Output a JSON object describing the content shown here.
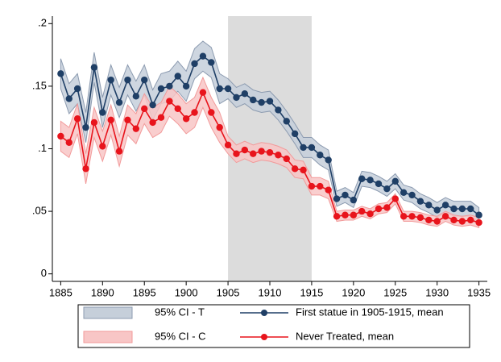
{
  "chart_data": {
    "type": "line",
    "x": [
      1885,
      1886,
      1887,
      1888,
      1889,
      1890,
      1891,
      1892,
      1893,
      1894,
      1895,
      1896,
      1897,
      1898,
      1899,
      1900,
      1901,
      1902,
      1903,
      1904,
      1905,
      1906,
      1907,
      1908,
      1909,
      1910,
      1911,
      1912,
      1913,
      1914,
      1915,
      1916,
      1917,
      1918,
      1919,
      1920,
      1921,
      1922,
      1923,
      1924,
      1925,
      1926,
      1927,
      1928,
      1929,
      1930,
      1931,
      1932,
      1933,
      1934,
      1935
    ],
    "series": [
      {
        "name": "First statue in 1905-1915, mean",
        "color": "#1f3f66",
        "values": [
          0.16,
          0.14,
          0.148,
          0.117,
          0.165,
          0.129,
          0.155,
          0.137,
          0.155,
          0.142,
          0.155,
          0.135,
          0.148,
          0.15,
          0.158,
          0.15,
          0.168,
          0.174,
          0.169,
          0.148,
          0.148,
          0.141,
          0.144,
          0.139,
          0.137,
          0.138,
          0.131,
          0.122,
          0.112,
          0.101,
          0.101,
          0.095,
          0.091,
          0.06,
          0.063,
          0.059,
          0.076,
          0.075,
          0.072,
          0.068,
          0.074,
          0.065,
          0.063,
          0.058,
          0.055,
          0.051,
          0.055,
          0.052,
          0.052,
          0.052,
          0.047
        ]
      },
      {
        "name": "Never Treated, mean",
        "color": "#e8141c",
        "values": [
          0.11,
          0.105,
          0.124,
          0.084,
          0.121,
          0.102,
          0.123,
          0.098,
          0.123,
          0.116,
          0.132,
          0.121,
          0.125,
          0.138,
          0.132,
          0.124,
          0.129,
          0.145,
          0.129,
          0.117,
          0.103,
          0.096,
          0.099,
          0.096,
          0.098,
          0.097,
          0.095,
          0.092,
          0.084,
          0.083,
          0.07,
          0.07,
          0.067,
          0.046,
          0.047,
          0.047,
          0.05,
          0.048,
          0.052,
          0.053,
          0.06,
          0.046,
          0.046,
          0.045,
          0.043,
          0.042,
          0.046,
          0.043,
          0.042,
          0.043,
          0.041
        ]
      }
    ],
    "bands": [
      {
        "name": "95% CI - T",
        "color": "#c6cfda",
        "edge_color": "#8c9bb0",
        "lower": [
          0.148,
          0.128,
          0.136,
          0.105,
          0.153,
          0.117,
          0.143,
          0.125,
          0.143,
          0.13,
          0.143,
          0.123,
          0.136,
          0.138,
          0.146,
          0.138,
          0.156,
          0.162,
          0.157,
          0.136,
          0.14,
          0.133,
          0.136,
          0.131,
          0.129,
          0.13,
          0.123,
          0.114,
          0.104,
          0.093,
          0.093,
          0.087,
          0.083,
          0.054,
          0.057,
          0.053,
          0.07,
          0.069,
          0.066,
          0.062,
          0.068,
          0.059,
          0.057,
          0.052,
          0.049,
          0.045,
          0.049,
          0.046,
          0.046,
          0.046,
          0.041
        ],
        "upper": [
          0.172,
          0.152,
          0.16,
          0.129,
          0.177,
          0.141,
          0.167,
          0.149,
          0.167,
          0.154,
          0.167,
          0.147,
          0.16,
          0.162,
          0.17,
          0.162,
          0.18,
          0.186,
          0.181,
          0.16,
          0.156,
          0.149,
          0.152,
          0.147,
          0.145,
          0.146,
          0.139,
          0.13,
          0.12,
          0.109,
          0.109,
          0.103,
          0.099,
          0.066,
          0.069,
          0.065,
          0.082,
          0.081,
          0.078,
          0.074,
          0.08,
          0.071,
          0.069,
          0.064,
          0.061,
          0.057,
          0.061,
          0.058,
          0.058,
          0.058,
          0.053
        ]
      },
      {
        "name": "95% CI - C",
        "color": "#f8c6c6",
        "edge_color": "#f29a9a",
        "lower": [
          0.098,
          0.093,
          0.112,
          0.072,
          0.109,
          0.09,
          0.111,
          0.086,
          0.111,
          0.104,
          0.12,
          0.109,
          0.113,
          0.126,
          0.12,
          0.112,
          0.117,
          0.133,
          0.117,
          0.105,
          0.096,
          0.089,
          0.092,
          0.089,
          0.091,
          0.09,
          0.088,
          0.085,
          0.077,
          0.076,
          0.063,
          0.063,
          0.06,
          0.042,
          0.043,
          0.043,
          0.046,
          0.044,
          0.048,
          0.049,
          0.056,
          0.042,
          0.042,
          0.041,
          0.039,
          0.038,
          0.042,
          0.039,
          0.038,
          0.039,
          0.037
        ],
        "upper": [
          0.122,
          0.117,
          0.136,
          0.096,
          0.133,
          0.114,
          0.135,
          0.11,
          0.135,
          0.128,
          0.144,
          0.133,
          0.137,
          0.15,
          0.144,
          0.136,
          0.141,
          0.157,
          0.141,
          0.129,
          0.11,
          0.103,
          0.106,
          0.103,
          0.105,
          0.104,
          0.102,
          0.099,
          0.091,
          0.09,
          0.077,
          0.077,
          0.074,
          0.05,
          0.051,
          0.051,
          0.054,
          0.052,
          0.056,
          0.057,
          0.064,
          0.05,
          0.05,
          0.049,
          0.047,
          0.046,
          0.05,
          0.047,
          0.046,
          0.047,
          0.045
        ]
      }
    ],
    "shaded_region": [
      1905,
      1915
    ],
    "shaded_color": "#dcdcdc",
    "xlim": [
      1884,
      1936
    ],
    "xticks": [
      1885,
      1890,
      1895,
      1900,
      1905,
      1910,
      1915,
      1920,
      1925,
      1930,
      1935
    ],
    "ylim": [
      -0.006,
      0.206
    ],
    "yticks": [
      0,
      {
        "value": 0.05,
        "label": ".05"
      },
      {
        "value": 0.1,
        "label": ".1"
      },
      {
        "value": 0.15,
        "label": ".15"
      },
      {
        "value": 0.2,
        "label": ".2"
      }
    ],
    "grid": false
  }
}
